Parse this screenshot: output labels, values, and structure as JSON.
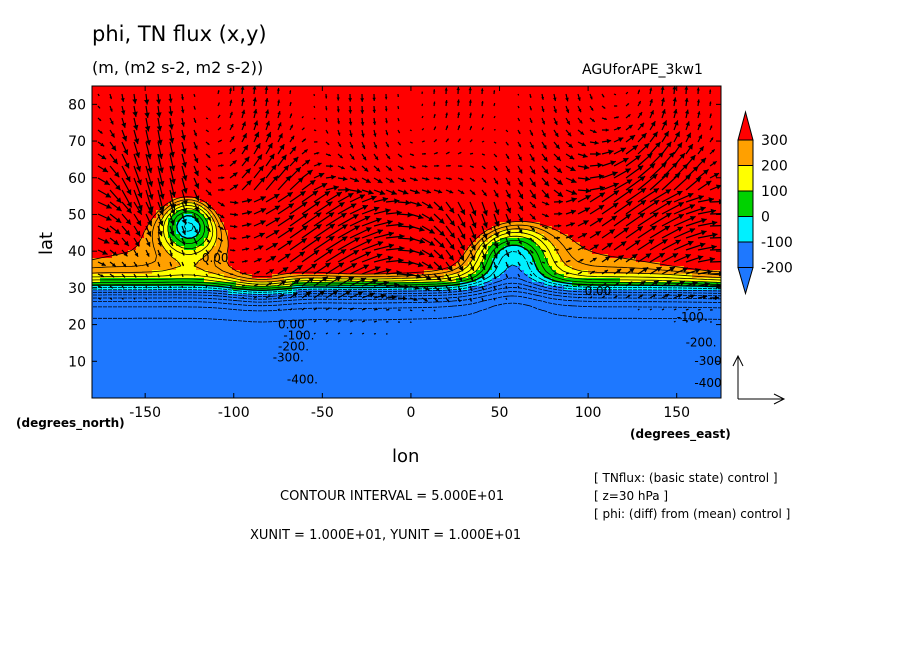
{
  "chart_data": {
    "type": "heatmap",
    "title": "phi, TN flux (x,y)",
    "subtitle": "(m, (m2 s-2, m2 s-2))",
    "run_name": "AGUforAPE_3kw1",
    "xlabel": "lon",
    "ylabel": "lat",
    "x_units_label": "(degrees_east)",
    "y_units_label": "(degrees_north)",
    "xlim": [
      -180,
      175
    ],
    "ylim": [
      0,
      85
    ],
    "x_ticks": [
      -150,
      -100,
      -50,
      0,
      50,
      100,
      150
    ],
    "x_tick_labels": [
      "-150",
      "-100",
      "-50",
      "0",
      "50",
      "100",
      "150"
    ],
    "y_ticks": [
      10,
      20,
      30,
      40,
      50,
      60,
      70,
      80
    ],
    "y_tick_labels": [
      "10",
      "20",
      "30",
      "40",
      "50",
      "60",
      "70",
      "80"
    ],
    "colorbar": {
      "levels": [
        -200,
        -100,
        0,
        100,
        200,
        300
      ],
      "labels": [
        "-200",
        "-100",
        "0",
        "100",
        "200",
        "300"
      ],
      "colors": [
        "#1e78ff",
        "#00f0ff",
        "#00d200",
        "#ffff00",
        "#ffa000",
        "#ff0000"
      ],
      "under_color": "#1e78ff",
      "over_color": "#ff0000"
    },
    "bands": [
      {
        "lo": -1000,
        "hi": -300,
        "color": "#1e78ff"
      },
      {
        "lo": -300,
        "hi": -200,
        "color": "#1e78ff"
      },
      {
        "lo": -200,
        "hi": -100,
        "color": "#1e78ff"
      },
      {
        "lo": -100,
        "hi": 0,
        "color": "#00f0ff"
      },
      {
        "lo": 0,
        "hi": 100,
        "color": "#00d200"
      },
      {
        "lo": 100,
        "hi": 200,
        "color": "#ffff00"
      },
      {
        "lo": 200,
        "hi": 300,
        "color": "#ffa000"
      },
      {
        "lo": 300,
        "hi": 100000,
        "color": "#ff0000"
      }
    ],
    "contour_labels": [
      {
        "text": "0.00",
        "lon": -118,
        "lat": 37
      },
      {
        "text": "0.00",
        "lon": 98,
        "lat": 28
      },
      {
        "text": "0.00",
        "lon": -75,
        "lat": 19
      },
      {
        "text": "-100.",
        "lon": -72,
        "lat": 16
      },
      {
        "text": "-200.",
        "lon": -75,
        "lat": 13
      },
      {
        "text": "-300.",
        "lon": -78,
        "lat": 10
      },
      {
        "text": "-400.",
        "lon": -70,
        "lat": 4
      },
      {
        "text": "-100.",
        "lon": 150,
        "lat": 21
      },
      {
        "text": "-200.",
        "lon": 155,
        "lat": 14
      },
      {
        "text": "-300.",
        "lon": 160,
        "lat": 9
      },
      {
        "text": "-400.",
        "lon": 160,
        "lat": 3
      }
    ],
    "vector_scale": {
      "x_units": "(m2 s-2)",
      "y_units": "(m2 s-2)"
    }
  },
  "annotations": {
    "contour_interval": "CONTOUR INTERVAL = 5.000E+01",
    "unit_line": "XUNIT = 1.000E+01, YUNIT = 1.000E+01",
    "notes": [
      "[ TNflux: (basic state) control ]",
      "[ z=30 hPa ]",
      "[ phi: (diff) from (mean) control ]"
    ]
  }
}
